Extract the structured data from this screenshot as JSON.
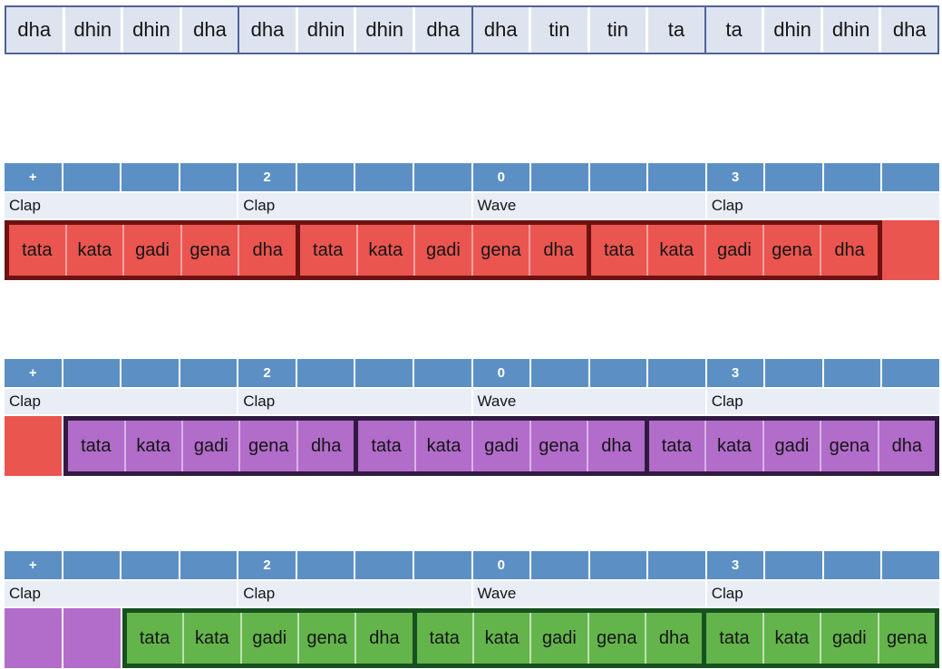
{
  "top_strip": {
    "beats": [
      {
        "syllables": [
          "dha",
          "dhin",
          "dhin",
          "dha"
        ]
      },
      {
        "syllables": [
          "dha",
          "dhin",
          "dhin",
          "dha"
        ]
      },
      {
        "syllables": [
          "dha",
          "tin",
          "tin",
          "ta"
        ]
      },
      {
        "syllables": [
          "ta",
          "dhin",
          "dhin",
          "dha"
        ]
      }
    ]
  },
  "beat_header": {
    "markers": [
      "+",
      "2",
      "0",
      "3"
    ],
    "labels": [
      "Clap",
      "Clap",
      "Wave",
      "Clap"
    ]
  },
  "blocks": [
    {
      "name": "phrase-cycle-1",
      "fill": "#ea5550",
      "group_border": "#6d1210",
      "separator": "#f4a09d",
      "leading_cells": [],
      "groups": [
        [
          "tata",
          "kata",
          "gadi",
          "gena",
          "dha"
        ],
        [
          "tata",
          "kata",
          "gadi",
          "gena",
          "dha"
        ],
        [
          "tata",
          "kata",
          "gadi",
          "gena",
          "dha"
        ]
      ],
      "trailing_cells": [
        "#ea5550"
      ]
    },
    {
      "name": "phrase-cycle-2",
      "fill": "#b26cca",
      "group_border": "#311a42",
      "separator": "#d8b3e6",
      "leading_cells": [
        "#ea5550"
      ],
      "groups": [
        [
          "tata",
          "kata",
          "gadi",
          "gena",
          "dha"
        ],
        [
          "tata",
          "kata",
          "gadi",
          "gena",
          "dha"
        ],
        [
          "tata",
          "kata",
          "gadi",
          "gena",
          "dha"
        ]
      ],
      "trailing_cells": []
    },
    {
      "name": "phrase-cycle-3",
      "fill": "#64b44c",
      "group_border": "#175121",
      "separator": "#bfe0b3",
      "leading_cells": [
        "#b26cca",
        "#b26cca"
      ],
      "groups": [
        [
          "tata",
          "kata",
          "gadi",
          "gena",
          "dha"
        ],
        [
          "tata",
          "kata",
          "gadi",
          "gena",
          "dha"
        ],
        [
          "tata",
          "kata",
          "gadi",
          "gena"
        ]
      ],
      "trailing_cells": []
    }
  ],
  "colors": {
    "header_blue": "#5c90c4",
    "label_bg": "#e8edf6",
    "theka_cell": "#dde4ef",
    "theka_border": "#4f629a"
  }
}
